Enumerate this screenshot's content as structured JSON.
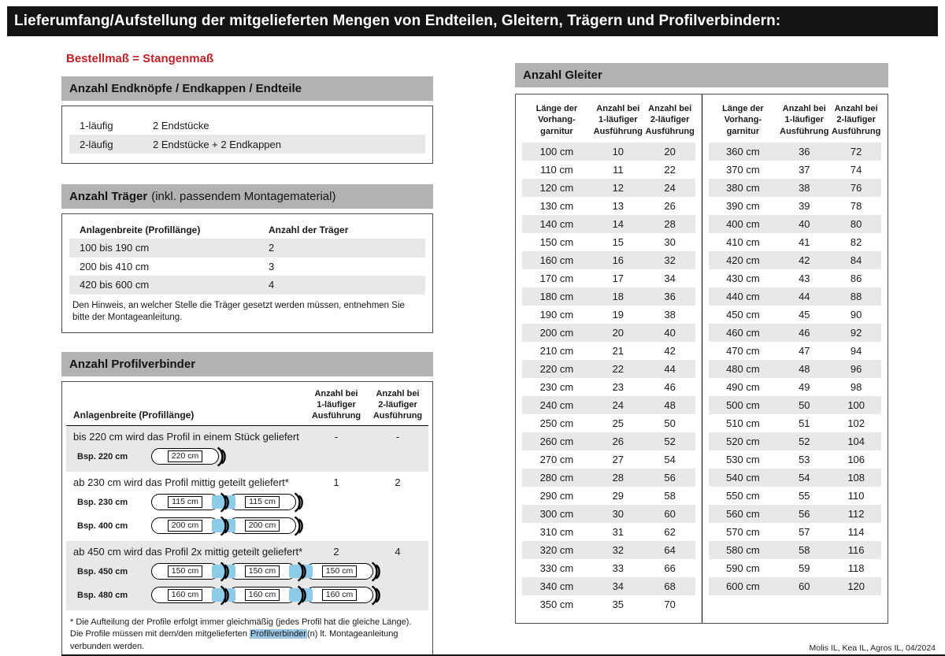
{
  "colors": {
    "accent_red": "#c42127",
    "header_gray": "#b2b2b2",
    "stripe_gray": "#e8e8e8",
    "highlight_blue": "#8ecbe9",
    "titlebar_black": "#141414"
  },
  "page": {
    "title": "Lieferumfang/Aufstellung der mitgelieferten Mengen von Endteilen, Gleitern, Trägern und Profilverbindern:",
    "footer": "Molis IL, Kea IL, Agros IL, 04/2024"
  },
  "left": {
    "order_note": "Bestellmaß = Stangenmaß",
    "endteile": {
      "title": "Anzahl Endknöpfe / Endkappen / Endteile",
      "rows": [
        {
          "label": "1-läufig",
          "value": "2 Endstücke"
        },
        {
          "label": "2-läufig",
          "value": "2 Endstücke + 2 Endkappen"
        }
      ]
    },
    "traeger": {
      "title": "Anzahl Träger",
      "title_suffix": "(inkl. passendem Montagematerial)",
      "col1": "Anlagenbreite (Profillänge)",
      "col2": "Anzahl der Träger",
      "rows": [
        {
          "range": "100 bis 190 cm",
          "count": "2"
        },
        {
          "range": "200 bis 410 cm",
          "count": "3"
        },
        {
          "range": "420 bis 600 cm",
          "count": "4"
        }
      ],
      "note": "Den Hinweis, an welcher Stelle die Träger gesetzt werden müssen, entnehmen Sie bitte der Montageanleitung."
    },
    "profilverbinder": {
      "title": "Anzahl Profilverbinder",
      "col_width": "Anlagenbreite (Profillänge)",
      "col1": "Anzahl bei\n1-läufiger\nAusführung",
      "col2": "Anzahl bei\n2-läufiger\nAusführung",
      "rows": [
        {
          "text": "bis 220 cm wird das Profil in einem Stück geliefert",
          "count1": "-",
          "count2": "-",
          "examples": [
            {
              "label": "Bsp. 220 cm",
              "segments": [
                "220 cm"
              ]
            }
          ]
        },
        {
          "text": "ab 230 cm wird das Profil mittig geteilt geliefert*",
          "count1": "1",
          "count2": "2",
          "examples": [
            {
              "label": "Bsp. 230 cm",
              "segments": [
                "115 cm",
                "115 cm"
              ]
            },
            {
              "label": "Bsp. 400 cm",
              "segments": [
                "200 cm",
                "200 cm"
              ]
            }
          ]
        },
        {
          "text": "ab 450 cm wird das Profil 2x mittig geteilt geliefert*",
          "count1": "2",
          "count2": "4",
          "examples": [
            {
              "label": "Bsp. 450 cm",
              "segments": [
                "150 cm",
                "150 cm",
                "150 cm"
              ]
            },
            {
              "label": "Bsp. 480 cm",
              "segments": [
                "160 cm",
                "160 cm",
                "160 cm"
              ]
            }
          ]
        }
      ],
      "footnote_pre": "* Die Aufteilung der Profile erfolgt immer gleichmäßig (jedes Profil hat die gleiche Länge). Die Profile müssen mit dem/den mitgelieferten ",
      "footnote_highlight": "Profilverbinder",
      "footnote_post": "(n) lt. Montageanleitung verbunden werden."
    }
  },
  "gleiter": {
    "title": "Anzahl Gleiter",
    "headers": {
      "len": "Länge der\nVorhang-\ngarnitur",
      "c1": "Anzahl bei\n1-läufiger\nAusführung",
      "c2": "Anzahl bei\n2-läufiger\nAusführung"
    },
    "table_left": [
      [
        "100 cm",
        "10",
        "20"
      ],
      [
        "110 cm",
        "11",
        "22"
      ],
      [
        "120 cm",
        "12",
        "24"
      ],
      [
        "130 cm",
        "13",
        "26"
      ],
      [
        "140 cm",
        "14",
        "28"
      ],
      [
        "150 cm",
        "15",
        "30"
      ],
      [
        "160 cm",
        "16",
        "32"
      ],
      [
        "170 cm",
        "17",
        "34"
      ],
      [
        "180 cm",
        "18",
        "36"
      ],
      [
        "190 cm",
        "19",
        "38"
      ],
      [
        "200 cm",
        "20",
        "40"
      ],
      [
        "210 cm",
        "21",
        "42"
      ],
      [
        "220 cm",
        "22",
        "44"
      ],
      [
        "230 cm",
        "23",
        "46"
      ],
      [
        "240 cm",
        "24",
        "48"
      ],
      [
        "250 cm",
        "25",
        "50"
      ],
      [
        "260 cm",
        "26",
        "52"
      ],
      [
        "270 cm",
        "27",
        "54"
      ],
      [
        "280 cm",
        "28",
        "56"
      ],
      [
        "290 cm",
        "29",
        "58"
      ],
      [
        "300 cm",
        "30",
        "60"
      ],
      [
        "310 cm",
        "31",
        "62"
      ],
      [
        "320 cm",
        "32",
        "64"
      ],
      [
        "330 cm",
        "33",
        "66"
      ],
      [
        "340 cm",
        "34",
        "68"
      ],
      [
        "350 cm",
        "35",
        "70"
      ]
    ],
    "table_right": [
      [
        "360 cm",
        "36",
        "72"
      ],
      [
        "370 cm",
        "37",
        "74"
      ],
      [
        "380 cm",
        "38",
        "76"
      ],
      [
        "390 cm",
        "39",
        "78"
      ],
      [
        "400 cm",
        "40",
        "80"
      ],
      [
        "410 cm",
        "41",
        "82"
      ],
      [
        "420 cm",
        "42",
        "84"
      ],
      [
        "430 cm",
        "43",
        "86"
      ],
      [
        "440 cm",
        "44",
        "88"
      ],
      [
        "450 cm",
        "45",
        "90"
      ],
      [
        "460 cm",
        "46",
        "92"
      ],
      [
        "470 cm",
        "47",
        "94"
      ],
      [
        "480 cm",
        "48",
        "96"
      ],
      [
        "490 cm",
        "49",
        "98"
      ],
      [
        "500 cm",
        "50",
        "100"
      ],
      [
        "510 cm",
        "51",
        "102"
      ],
      [
        "520 cm",
        "52",
        "104"
      ],
      [
        "530 cm",
        "53",
        "106"
      ],
      [
        "540 cm",
        "54",
        "108"
      ],
      [
        "550 cm",
        "55",
        "110"
      ],
      [
        "560 cm",
        "56",
        "112"
      ],
      [
        "570 cm",
        "57",
        "114"
      ],
      [
        "580 cm",
        "58",
        "116"
      ],
      [
        "590 cm",
        "59",
        "118"
      ],
      [
        "600 cm",
        "60",
        "120"
      ]
    ]
  }
}
